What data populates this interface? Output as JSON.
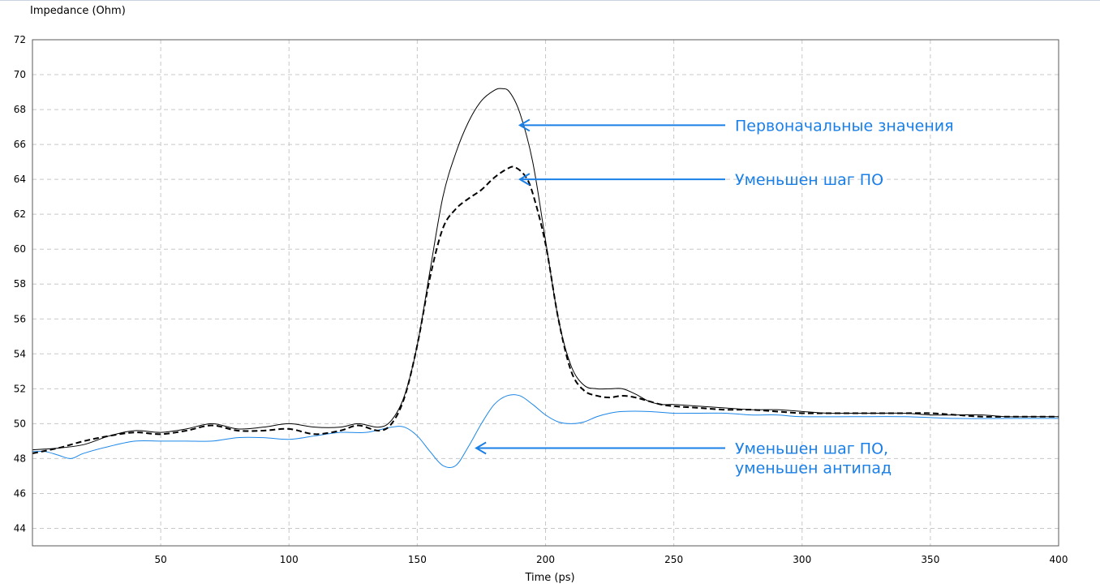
{
  "chart_data": {
    "type": "line",
    "ylabel": "Impedance (Ohm)",
    "xlabel": "Time (ps)",
    "xlim": [
      0,
      400
    ],
    "ylim": [
      43,
      72
    ],
    "xticks": [
      50,
      100,
      150,
      200,
      250,
      300,
      350,
      400
    ],
    "yticks": [
      44,
      46,
      48,
      50,
      52,
      54,
      56,
      58,
      60,
      62,
      64,
      66,
      68,
      70,
      72
    ],
    "grid": true,
    "colors": {
      "black": "#000000",
      "blue": "#1a86e8",
      "annotation": "#1a7fe6",
      "grid": "#c8c8c8"
    },
    "series": [
      {
        "style": "solid",
        "color": "#000000",
        "x": [
          0,
          10,
          20,
          30,
          40,
          50,
          60,
          70,
          80,
          90,
          100,
          110,
          120,
          127,
          135,
          140,
          145,
          150,
          155,
          160,
          165,
          170,
          175,
          180,
          183,
          186,
          190,
          195,
          200,
          205,
          210,
          215,
          220,
          225,
          230,
          235,
          240,
          245,
          250,
          260,
          270,
          280,
          290,
          300,
          310,
          320,
          330,
          340,
          350,
          360,
          370,
          380,
          390,
          400
        ],
        "y": [
          48.5,
          48.6,
          48.8,
          49.3,
          49.6,
          49.5,
          49.7,
          50.0,
          49.7,
          49.8,
          50.0,
          49.8,
          49.8,
          50.0,
          49.8,
          50.2,
          51.6,
          54.5,
          58.8,
          63.0,
          65.5,
          67.3,
          68.5,
          69.1,
          69.2,
          69.0,
          67.8,
          65.0,
          60.5,
          56.0,
          53.3,
          52.2,
          52.0,
          52.0,
          52.0,
          51.7,
          51.3,
          51.1,
          51.1,
          51.0,
          50.9,
          50.8,
          50.8,
          50.7,
          50.6,
          50.6,
          50.6,
          50.6,
          50.5,
          50.5,
          50.5,
          50.4,
          50.4,
          50.4
        ]
      },
      {
        "style": "dashed",
        "color": "#000000",
        "x": [
          0,
          10,
          20,
          30,
          40,
          50,
          60,
          70,
          80,
          90,
          100,
          110,
          120,
          127,
          135,
          140,
          145,
          150,
          155,
          160,
          165,
          170,
          175,
          180,
          185,
          188,
          192,
          195,
          200,
          205,
          210,
          215,
          220,
          225,
          230,
          235,
          240,
          245,
          250,
          260,
          270,
          280,
          290,
          300,
          310,
          320,
          330,
          340,
          350,
          360,
          370,
          380,
          390,
          400
        ],
        "y": [
          48.3,
          48.6,
          49.0,
          49.3,
          49.5,
          49.4,
          49.6,
          49.9,
          49.6,
          49.6,
          49.7,
          49.4,
          49.6,
          49.9,
          49.6,
          50.0,
          51.5,
          54.5,
          58.4,
          61.2,
          62.3,
          62.9,
          63.4,
          64.1,
          64.6,
          64.7,
          64.2,
          63.2,
          60.3,
          56.0,
          53.0,
          51.9,
          51.6,
          51.5,
          51.6,
          51.5,
          51.3,
          51.1,
          51.0,
          50.9,
          50.8,
          50.8,
          50.7,
          50.6,
          50.6,
          50.6,
          50.6,
          50.6,
          50.6,
          50.5,
          50.4,
          50.4,
          50.4,
          50.4
        ]
      },
      {
        "style": "solid",
        "color": "#1a86e8",
        "x": [
          0,
          5,
          10,
          15,
          20,
          30,
          40,
          50,
          60,
          70,
          80,
          90,
          100,
          110,
          120,
          130,
          140,
          145,
          150,
          155,
          160,
          165,
          170,
          175,
          180,
          185,
          190,
          195,
          200,
          205,
          210,
          215,
          220,
          225,
          230,
          240,
          250,
          260,
          270,
          280,
          290,
          300,
          320,
          340,
          360,
          380,
          400
        ],
        "y": [
          48.4,
          48.4,
          48.2,
          48.0,
          48.3,
          48.7,
          49.0,
          49.0,
          49.0,
          49.0,
          49.2,
          49.2,
          49.1,
          49.3,
          49.5,
          49.5,
          49.8,
          49.8,
          49.3,
          48.4,
          47.6,
          47.6,
          48.7,
          50.0,
          51.1,
          51.6,
          51.6,
          51.1,
          50.5,
          50.1,
          50.0,
          50.1,
          50.4,
          50.6,
          50.7,
          50.7,
          50.6,
          50.6,
          50.6,
          50.5,
          50.5,
          50.4,
          50.4,
          50.4,
          50.3,
          50.3,
          50.3
        ]
      }
    ],
    "annotations": [
      {
        "lines": [
          "Первоначальные значения"
        ],
        "tip": [
          190,
          67.1
        ]
      },
      {
        "lines": [
          "Уменьшен шаг ПО"
        ],
        "tip": [
          190,
          64.0
        ]
      },
      {
        "lines": [
          "Уменьшен шаг ПО,",
          "уменьшен антипад"
        ],
        "tip": [
          173,
          48.6
        ]
      }
    ]
  }
}
